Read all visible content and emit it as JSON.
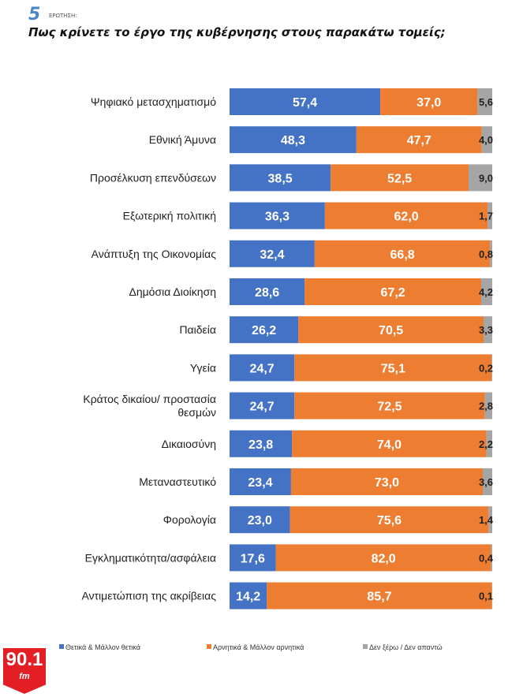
{
  "header": {
    "number": "5",
    "question_label": "ΕΡΩΤΗΣΗ:",
    "title": "Πως κρίνετε το έργο της κυβέρνησης στους παρακάτω τομείς;"
  },
  "logo": {
    "text": "90.1",
    "sub": "fm"
  },
  "chart_data": {
    "type": "bar",
    "orientation": "horizontal",
    "stacked": true,
    "xlim": [
      0,
      100
    ],
    "categories": [
      "Ψηφιακό μετασχηματισμό",
      "Εθνική Άμυνα",
      "Προσέλκυση επενδύσεων",
      "Εξωτερική πολιτική",
      "Ανάπτυξη της Οικονομίας",
      "Δημόσια Διοίκηση",
      "Παιδεία",
      "Υγεία",
      "Κράτος δικαίου/ προστασία|θεσμών",
      "Δικαιοσύνη",
      "Μεταναστευτικό",
      "Φορολογία",
      "Εγκληματικότητα/ασφάλεια",
      "Αντιμετώπιση της ακρίβειας"
    ],
    "series": [
      {
        "name": "Θετικά & Μάλλον θετικά",
        "color": "#4472C4",
        "values": [
          57.4,
          48.3,
          38.5,
          36.3,
          32.4,
          28.6,
          26.2,
          24.7,
          24.7,
          23.8,
          23.4,
          23.0,
          17.6,
          14.2
        ]
      },
      {
        "name": "Αρνητικά & Μάλλον αρνητικά",
        "color": "#ED7D31",
        "values": [
          37.0,
          47.7,
          52.5,
          62.0,
          66.8,
          67.2,
          70.5,
          75.1,
          72.5,
          74.0,
          73.0,
          75.6,
          82.0,
          85.7
        ]
      },
      {
        "name": "Δεν ξέρω / Δεν απαντώ",
        "color": "#A5A5A5",
        "values": [
          5.6,
          4.0,
          9.0,
          1.7,
          0.8,
          4.2,
          3.3,
          0.2,
          2.8,
          2.2,
          3.6,
          1.4,
          0.4,
          0.1
        ]
      }
    ],
    "legend": "bottom",
    "grid": false
  }
}
